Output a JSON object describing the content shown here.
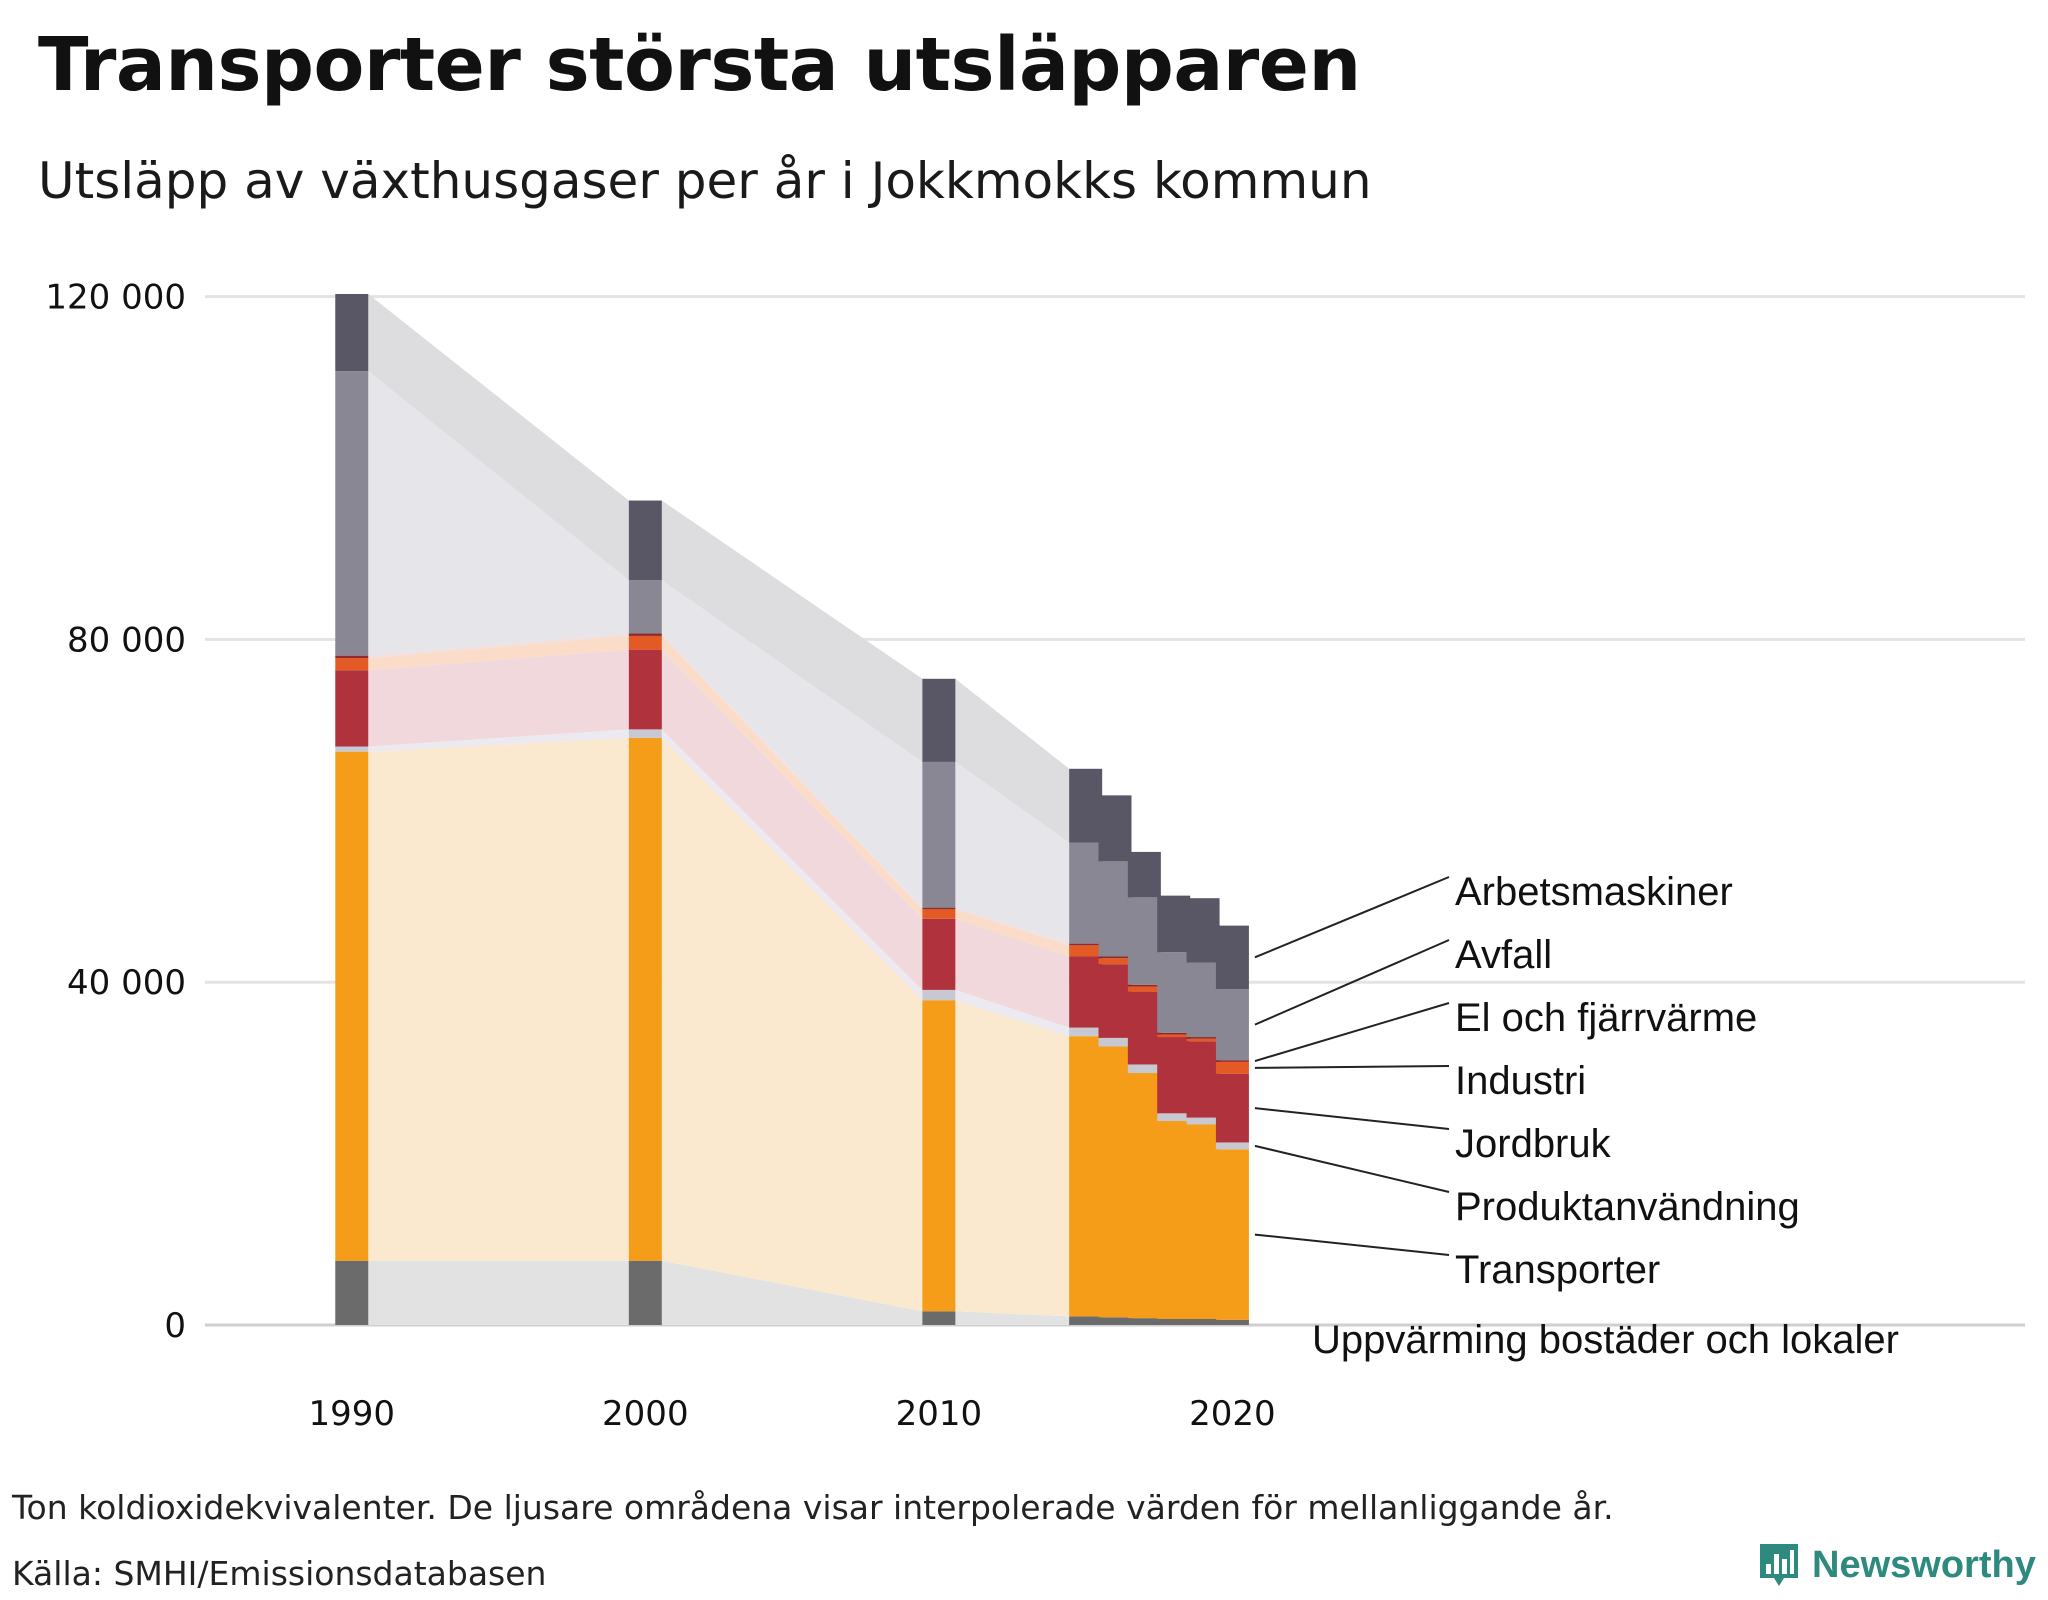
{
  "title": "Transporter största utsläpparen",
  "subtitle": "Utsläpp av växthusgaser per år i Jokkmokks kommun",
  "footnote": "Ton koldioxidekvivalenter. De ljusare områdena visar interpolerade värden för mellanliggande år.",
  "source": "Källa: SMHI/Emissionsdatabasen",
  "brand": "Newsworthy",
  "chart_data": {
    "type": "bar",
    "stacked": true,
    "title": "Transporter största utsläpparen",
    "subtitle": "Utsläpp av växthusgaser per år i Jokkmokks kommun",
    "xlabel": "",
    "ylabel": "Ton koldioxidekvivalenter",
    "ylim": [
      0,
      128000
    ],
    "xlim": [
      1985,
      2047
    ],
    "y_ticks": [
      0,
      40000,
      80000,
      120000
    ],
    "y_tick_labels": [
      "0",
      "40 000",
      "80 000",
      "120 000"
    ],
    "x_ticks": [
      1990,
      2000,
      2010,
      2020
    ],
    "x_tick_labels": [
      "1990",
      "2000",
      "2010",
      "2020"
    ],
    "grid": true,
    "years": [
      1990,
      2000,
      2010,
      2015,
      2016,
      2017,
      2018,
      2019,
      2020
    ],
    "series": [
      {
        "name": "Uppvärming bostäder och lokaler",
        "color": "#6b6b6b",
        "area_color": "#e2e2e2",
        "values": [
          7500,
          7500,
          1600,
          1000,
          900,
          800,
          700,
          700,
          600
        ]
      },
      {
        "name": "Transporter",
        "color": "#f59d19",
        "area_color": "#fbe9cf",
        "values": [
          59400,
          61000,
          36300,
          32700,
          31600,
          28600,
          23100,
          22700,
          19900
        ]
      },
      {
        "name": "Produktanvändning",
        "color": "#c8c8d2",
        "area_color": "#eceaf0",
        "values": [
          600,
          1000,
          1200,
          1000,
          1000,
          1000,
          900,
          800,
          800
        ]
      },
      {
        "name": "Jordbruk",
        "color": "#b0323d",
        "area_color": "#f0d8dc",
        "values": [
          8900,
          9300,
          8300,
          8300,
          8600,
          8500,
          8900,
          8900,
          8000
        ]
      },
      {
        "name": "Industri",
        "color": "#e45a24",
        "area_color": "#fbdcc8",
        "values": [
          1400,
          1600,
          1100,
          1300,
          700,
          600,
          300,
          300,
          1400
        ]
      },
      {
        "name": "El och fjärrvärme",
        "color": "#8e2a2a",
        "area_color": "#f2e0df",
        "values": [
          300,
          300,
          200,
          200,
          200,
          200,
          200,
          200,
          200
        ]
      },
      {
        "name": "Avfall",
        "color": "#898794",
        "area_color": "#e6e6ea",
        "values": [
          33200,
          6200,
          17000,
          11800,
          11100,
          10200,
          9400,
          8700,
          8300
        ]
      },
      {
        "name": "Arbetsmaskiner",
        "color": "#595766",
        "area_color": "#dddde0",
        "values": [
          9000,
          9300,
          9700,
          8600,
          7700,
          5300,
          6600,
          7500,
          7400
        ]
      }
    ]
  }
}
